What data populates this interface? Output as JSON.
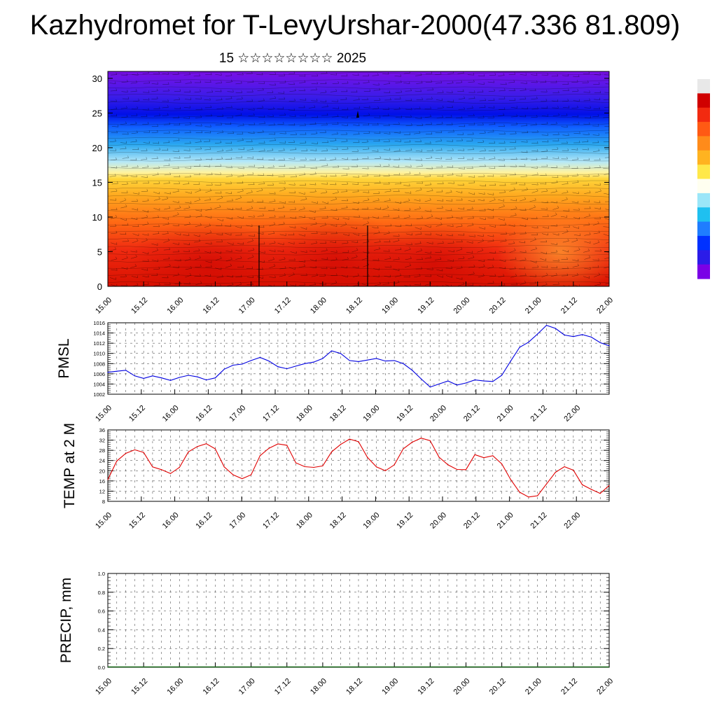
{
  "title": "Kazhydromet for T-LevyUrshar-2000(47.336 81.809)",
  "subtitle": "15 ☆☆☆☆☆☆☆☆ 2025",
  "time_labels": [
    "15.00",
    "15.12",
    "16.00",
    "16.12",
    "17.00",
    "17.12",
    "18.00",
    "18.12",
    "19.00",
    "19.12",
    "20.00",
    "20.12",
    "21.00",
    "21.12",
    "22.00"
  ],
  "chart_data": [
    {
      "type": "heatmap",
      "name": "cross-section",
      "x": [
        "15.00",
        "15.12",
        "16.00",
        "16.12",
        "17.00",
        "17.12",
        "18.00",
        "18.12",
        "19.00",
        "19.12",
        "20.00",
        "20.12",
        "21.00",
        "21.12",
        "22.00"
      ],
      "yticks": [
        0,
        5,
        10,
        15,
        20,
        25,
        30
      ],
      "ylim": [
        0,
        31
      ],
      "colorbar_colors": [
        "#7a00e6",
        "#2b1ce8",
        "#0031ff",
        "#1f7dff",
        "#1fc0f0",
        "#9be6f8",
        "#fffff0",
        "#ffe84a",
        "#ffb320",
        "#ff8b1a",
        "#ff5a14",
        "#f22a10",
        "#d00000",
        "#e8e8e8"
      ]
    },
    {
      "type": "line",
      "ylabel": "PMSL",
      "color": "#0000e0",
      "ylim": [
        1002,
        1016
      ],
      "yticks": [
        1002,
        1004,
        1006,
        1008,
        1010,
        1012,
        1014,
        1016
      ],
      "x_start": 0,
      "x_step": 3,
      "values": [
        1006.3,
        1006.5,
        1006.7,
        1005.6,
        1005.1,
        1005.6,
        1005.2,
        1004.7,
        1005.3,
        1005.7,
        1005.4,
        1004.8,
        1005.2,
        1006.9,
        1007.7,
        1007.9,
        1008.6,
        1009.2,
        1008.5,
        1007.4,
        1007.0,
        1007.5,
        1008.0,
        1008.3,
        1009.0,
        1010.5,
        1010.0,
        1008.6,
        1008.4,
        1008.7,
        1009.0,
        1008.5,
        1008.6,
        1008.0,
        1006.7,
        1005.0,
        1003.4,
        1004.0,
        1004.6,
        1003.8,
        1004.2,
        1004.8,
        1004.6,
        1004.5,
        1005.7,
        1008.5,
        1011.2,
        1012.2,
        1013.8,
        1015.5,
        1014.9,
        1013.6,
        1013.3,
        1013.7,
        1013.2,
        1012.1,
        1011.5
      ]
    },
    {
      "type": "line",
      "ylabel": "TEMP at 2 M",
      "color": "#e00000",
      "ylim": [
        8,
        36
      ],
      "yticks": [
        8,
        12,
        16,
        20,
        24,
        28,
        32,
        36
      ],
      "x_start": 0,
      "x_step": 3,
      "values": [
        16.5,
        23.8,
        26.8,
        28.2,
        27.2,
        21.5,
        20.4,
        18.9,
        21.3,
        27.4,
        29.5,
        30.6,
        28.6,
        21.5,
        18.4,
        16.9,
        18.4,
        25.9,
        28.8,
        30.5,
        30.0,
        23.1,
        21.6,
        21.3,
        21.9,
        27.4,
        30.3,
        32.4,
        31.4,
        25.2,
        21.5,
        20.0,
        22.3,
        28.6,
        31.2,
        32.8,
        31.8,
        25.3,
        22.3,
        20.5,
        20.4,
        26.3,
        25.1,
        25.9,
        22.7,
        16.5,
        11.6,
        9.7,
        10.2,
        14.8,
        19.4,
        21.6,
        20.2,
        14.5,
        12.7,
        11.1,
        14.2
      ]
    },
    {
      "type": "bar",
      "ylabel": "PRECIP, mm",
      "ylim": [
        0,
        1
      ],
      "yticks": [
        "0.0",
        "0.2",
        "0.4",
        "0.6",
        "0.8",
        "1.0"
      ],
      "x_start": 0,
      "x_step": 3,
      "values": [
        0,
        0,
        0,
        0,
        0,
        0,
        0,
        0,
        0,
        0,
        0,
        0,
        0,
        0,
        0,
        0,
        0,
        0,
        0,
        0,
        0,
        0,
        0,
        0,
        0,
        0,
        0,
        0,
        0,
        0,
        0,
        0,
        0,
        0,
        0,
        0,
        0,
        0,
        0,
        0,
        0,
        0,
        0,
        0,
        0,
        0,
        0,
        0,
        0,
        0,
        0,
        0,
        0,
        0,
        0,
        0
      ]
    }
  ]
}
